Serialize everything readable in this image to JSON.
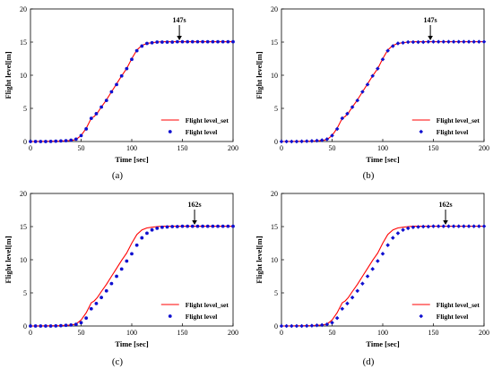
{
  "chart_data": [
    {
      "panel_label": "(a)",
      "type": "line",
      "xlabel": "Time [sec]",
      "ylabel": "Flight level[m]",
      "xlim": [
        0,
        200
      ],
      "ylim": [
        0,
        20
      ],
      "xticks": [
        "0",
        "50",
        "100",
        "150",
        "200"
      ],
      "yticks": [
        "0",
        "5",
        "10",
        "15",
        "20"
      ],
      "annotation": {
        "text": "147s",
        "x": 147,
        "y": 15
      },
      "legend_position": "lower-right",
      "series": [
        {
          "name": "Flight level_set",
          "style": "line",
          "color": "#ff0000",
          "x": [
            0,
            30,
            40,
            45,
            50,
            55,
            60,
            63,
            66,
            70,
            75,
            80,
            85,
            90,
            95,
            100,
            105,
            110,
            115,
            120,
            125,
            130,
            140,
            150,
            160,
            170,
            180,
            190,
            200
          ],
          "y": [
            0,
            0.05,
            0.15,
            0.3,
            0.9,
            2.0,
            3.5,
            3.8,
            4.3,
            5.2,
            6.3,
            7.5,
            8.7,
            9.9,
            11.0,
            12.5,
            13.8,
            14.5,
            14.8,
            14.9,
            15.0,
            15.05,
            15.05,
            15.05,
            15.05,
            15.05,
            15.05,
            15.05,
            15.05
          ]
        },
        {
          "name": "Flight level",
          "style": "marker",
          "marker": "circle",
          "color": "#1010d0",
          "x": [
            0,
            5,
            10,
            15,
            20,
            25,
            30,
            35,
            40,
            45,
            50,
            55,
            60,
            65,
            70,
            75,
            80,
            85,
            90,
            95,
            100,
            105,
            110,
            115,
            120,
            125,
            130,
            135,
            140,
            145,
            150,
            155,
            160,
            165,
            170,
            175,
            180,
            185,
            190,
            195,
            200
          ],
          "y": [
            0,
            0,
            0,
            0,
            0.02,
            0.05,
            0.08,
            0.12,
            0.2,
            0.35,
            0.9,
            1.9,
            3.5,
            4.2,
            5.2,
            6.2,
            7.5,
            8.6,
            9.9,
            11.0,
            12.4,
            13.7,
            14.4,
            14.8,
            14.9,
            15.0,
            15.0,
            15.0,
            15.0,
            15.05,
            15.05,
            15.05,
            15.05,
            15.05,
            15.05,
            15.05,
            15.05,
            15.05,
            15.05,
            15.05,
            15.05
          ]
        }
      ]
    },
    {
      "panel_label": "(b)",
      "type": "line",
      "xlabel": "Time [sec]",
      "ylabel": "Flight level[m]",
      "xlim": [
        0,
        200
      ],
      "ylim": [
        0,
        20
      ],
      "xticks": [
        "0",
        "50",
        "100",
        "150",
        "200"
      ],
      "yticks": [
        "0",
        "5",
        "10",
        "15",
        "20"
      ],
      "annotation": {
        "text": "147s",
        "x": 147,
        "y": 15
      },
      "legend_position": "lower-right",
      "series": [
        {
          "name": "Flight level_set",
          "style": "line",
          "color": "#ff0000",
          "x": [
            0,
            30,
            40,
            45,
            50,
            55,
            60,
            63,
            66,
            70,
            75,
            80,
            85,
            90,
            95,
            100,
            105,
            110,
            115,
            120,
            125,
            130,
            140,
            150,
            160,
            170,
            180,
            190,
            200
          ],
          "y": [
            0,
            0.05,
            0.15,
            0.3,
            0.9,
            2.0,
            3.5,
            3.8,
            4.3,
            5.2,
            6.3,
            7.5,
            8.7,
            9.9,
            11.0,
            12.5,
            13.8,
            14.5,
            14.8,
            14.9,
            15.0,
            15.05,
            15.05,
            15.05,
            15.05,
            15.05,
            15.05,
            15.05,
            15.05
          ]
        },
        {
          "name": "Flight level",
          "style": "marker",
          "marker": "diamond",
          "color": "#1010d0",
          "x": [
            0,
            5,
            10,
            15,
            20,
            25,
            30,
            35,
            40,
            45,
            50,
            55,
            60,
            65,
            70,
            75,
            80,
            85,
            90,
            95,
            100,
            105,
            110,
            115,
            120,
            125,
            130,
            135,
            140,
            145,
            150,
            155,
            160,
            165,
            170,
            175,
            180,
            185,
            190,
            195,
            200
          ],
          "y": [
            0,
            0,
            0,
            0,
            0.02,
            0.05,
            0.08,
            0.12,
            0.2,
            0.35,
            0.9,
            1.9,
            3.5,
            4.2,
            5.2,
            6.2,
            7.5,
            8.6,
            9.9,
            11.0,
            12.4,
            13.7,
            14.4,
            14.8,
            14.9,
            15.0,
            15.0,
            15.0,
            15.0,
            15.05,
            15.05,
            15.05,
            15.05,
            15.05,
            15.05,
            15.05,
            15.05,
            15.05,
            15.05,
            15.05,
            15.05
          ]
        }
      ]
    },
    {
      "panel_label": "(c)",
      "type": "line",
      "xlabel": "Time [sec]",
      "ylabel": "Flight level[m]",
      "xlim": [
        0,
        200
      ],
      "ylim": [
        0,
        20
      ],
      "xticks": [
        "0",
        "50",
        "100",
        "150",
        "200"
      ],
      "yticks": [
        "0",
        "5",
        "10",
        "15",
        "20"
      ],
      "annotation": {
        "text": "162s",
        "x": 162,
        "y": 15
      },
      "legend_position": "lower-right",
      "series": [
        {
          "name": "Flight level_set",
          "style": "line",
          "color": "#ff0000",
          "x": [
            0,
            30,
            40,
            45,
            50,
            55,
            60,
            63,
            66,
            70,
            75,
            80,
            85,
            90,
            95,
            100,
            105,
            110,
            115,
            120,
            125,
            130,
            140,
            150,
            160,
            170,
            180,
            190,
            200
          ],
          "y": [
            0,
            0.05,
            0.15,
            0.3,
            0.9,
            2.0,
            3.5,
            3.8,
            4.3,
            5.2,
            6.3,
            7.5,
            8.7,
            9.9,
            11.0,
            12.5,
            13.8,
            14.5,
            14.8,
            14.9,
            15.0,
            15.05,
            15.05,
            15.05,
            15.05,
            15.05,
            15.05,
            15.05,
            15.05
          ]
        },
        {
          "name": "Flight level",
          "style": "marker",
          "marker": "circle",
          "color": "#1010d0",
          "x": [
            0,
            5,
            10,
            15,
            20,
            25,
            30,
            35,
            40,
            45,
            50,
            55,
            60,
            65,
            70,
            75,
            80,
            85,
            90,
            95,
            100,
            105,
            110,
            115,
            120,
            125,
            130,
            135,
            140,
            145,
            150,
            155,
            160,
            165,
            170,
            175,
            180,
            185,
            190,
            195,
            200
          ],
          "y": [
            0,
            0,
            0,
            0,
            0,
            0.02,
            0.05,
            0.1,
            0.15,
            0.25,
            0.5,
            1.2,
            2.6,
            3.4,
            4.3,
            5.3,
            6.4,
            7.5,
            8.6,
            9.8,
            10.9,
            12.2,
            13.3,
            14.0,
            14.5,
            14.75,
            14.9,
            14.95,
            15.0,
            15.0,
            15.05,
            15.05,
            15.05,
            15.05,
            15.05,
            15.05,
            15.05,
            15.05,
            15.05,
            15.05,
            15.05
          ]
        }
      ]
    },
    {
      "panel_label": "(d)",
      "type": "line",
      "xlabel": "Time [sec]",
      "ylabel": "Flight level[m]",
      "xlim": [
        0,
        200
      ],
      "ylim": [
        0,
        20
      ],
      "xticks": [
        "0",
        "50",
        "100",
        "150",
        "200"
      ],
      "yticks": [
        "0",
        "5",
        "10",
        "15",
        "20"
      ],
      "annotation": {
        "text": "162s",
        "x": 162,
        "y": 15
      },
      "legend_position": "lower-right",
      "series": [
        {
          "name": "Flight level_set",
          "style": "line",
          "color": "#ff0000",
          "x": [
            0,
            30,
            40,
            45,
            50,
            55,
            60,
            63,
            66,
            70,
            75,
            80,
            85,
            90,
            95,
            100,
            105,
            110,
            115,
            120,
            125,
            130,
            140,
            150,
            160,
            170,
            180,
            190,
            200
          ],
          "y": [
            0,
            0.05,
            0.15,
            0.3,
            0.9,
            2.0,
            3.5,
            3.8,
            4.3,
            5.2,
            6.3,
            7.5,
            8.7,
            9.9,
            11.0,
            12.5,
            13.8,
            14.5,
            14.8,
            14.9,
            15.0,
            15.05,
            15.05,
            15.05,
            15.05,
            15.05,
            15.05,
            15.05,
            15.05
          ]
        },
        {
          "name": "Flight level",
          "style": "marker",
          "marker": "diamond",
          "color": "#1010d0",
          "x": [
            0,
            5,
            10,
            15,
            20,
            25,
            30,
            35,
            40,
            45,
            50,
            55,
            60,
            65,
            70,
            75,
            80,
            85,
            90,
            95,
            100,
            105,
            110,
            115,
            120,
            125,
            130,
            135,
            140,
            145,
            150,
            155,
            160,
            165,
            170,
            175,
            180,
            185,
            190,
            195,
            200
          ],
          "y": [
            0,
            0,
            0,
            0,
            0,
            0.02,
            0.05,
            0.1,
            0.15,
            0.25,
            0.5,
            1.2,
            2.6,
            3.4,
            4.3,
            5.3,
            6.4,
            7.5,
            8.6,
            9.8,
            10.9,
            12.2,
            13.3,
            14.0,
            14.5,
            14.75,
            14.9,
            14.95,
            15.0,
            15.0,
            15.05,
            15.05,
            15.05,
            15.05,
            15.05,
            15.05,
            15.05,
            15.05,
            15.05,
            15.05,
            15.05
          ]
        }
      ]
    }
  ]
}
